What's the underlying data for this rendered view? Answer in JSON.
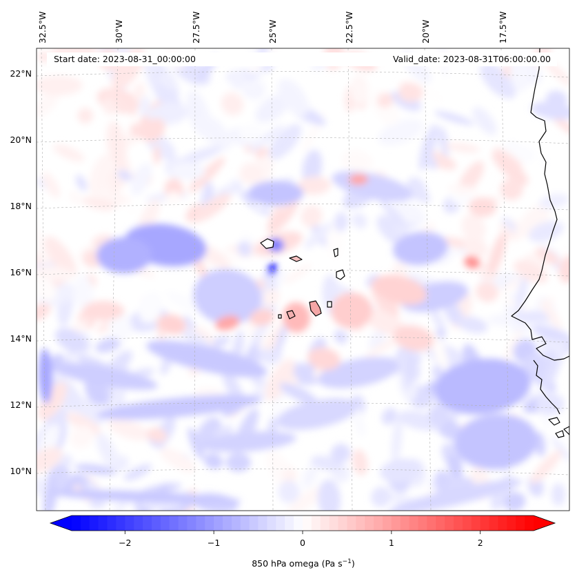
{
  "map": {
    "start_label": "Start date: 2023-08-31_00:00:00",
    "valid_label": "Valid_date: 2023-08-31T06:00:00.00",
    "lon_labels": [
      "32.5°W",
      "30°W",
      "27.5°W",
      "25°W",
      "22.5°W",
      "20°W",
      "17.5°W"
    ],
    "lat_labels": [
      "22°N",
      "20°N",
      "18°N",
      "16°N",
      "14°N",
      "12°N",
      "10°N"
    ],
    "colors": {
      "negative": "#0000ff",
      "neutral": "#ffffff",
      "positive": "#ff0000",
      "coastline": "#000000",
      "gridline": "#b0b0b0"
    },
    "colorbar": {
      "min": -2.6,
      "max": 2.6,
      "ticks": [
        "−2",
        "−1",
        "0",
        "1",
        "2"
      ],
      "tick_values": [
        -2,
        -1,
        0,
        1,
        2
      ],
      "label": "850 hPa omega (Pa s",
      "label_superscript": "−1",
      "label_suffix": ")"
    }
  }
}
